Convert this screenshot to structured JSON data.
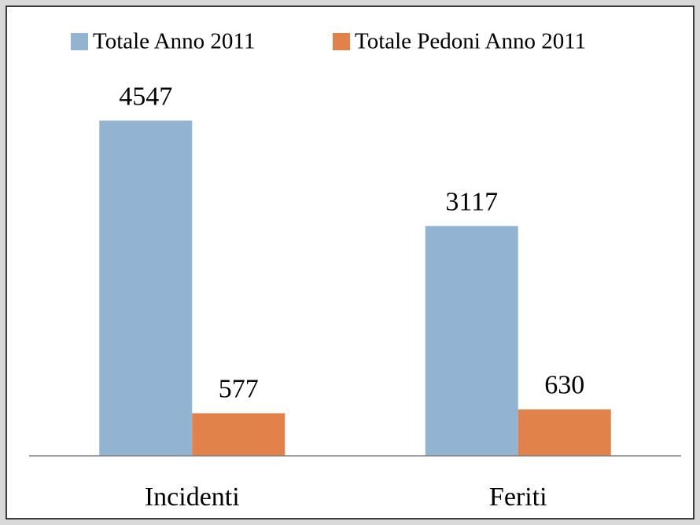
{
  "chart_data": {
    "type": "bar",
    "categories": [
      "Incidenti",
      "Feriti"
    ],
    "series": [
      {
        "name": "Totale Anno 2011",
        "color": "#93b3d3",
        "values": [
          4547,
          3117
        ]
      },
      {
        "name": "Totale Pedoni Anno 2011",
        "color": "#e0824a",
        "values": [
          577,
          630
        ]
      }
    ],
    "ylim": [
      0,
      5000
    ],
    "legend": "top"
  }
}
